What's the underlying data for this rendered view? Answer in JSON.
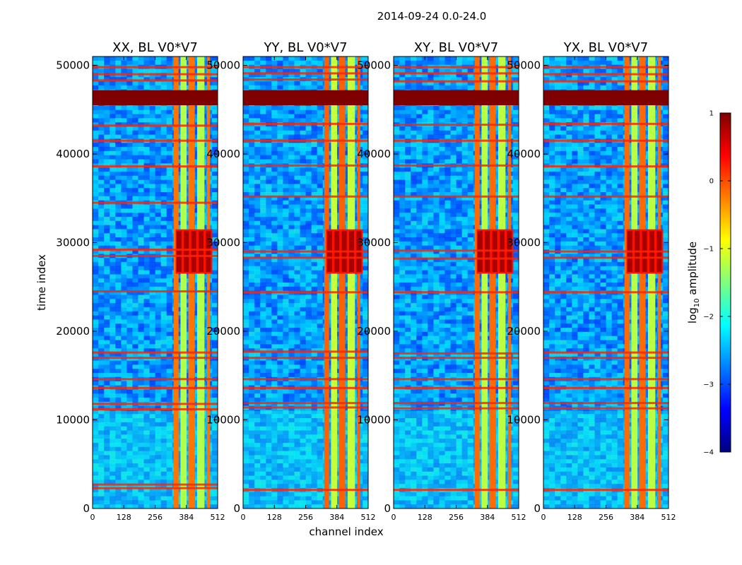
{
  "chart_data": {
    "type": "heatmap",
    "suptitle": "2014-09-24 0.0-24.0",
    "xlabel": "channel index",
    "ylabel": "time index",
    "xlim": [
      0,
      512
    ],
    "ylim": [
      0,
      51000
    ],
    "xticks": [
      0,
      128,
      256,
      384,
      512
    ],
    "yticks": [
      0,
      10000,
      20000,
      30000,
      40000,
      50000
    ],
    "panels": [
      {
        "id": "xx",
        "title": "XX, BL V0*V7",
        "band_value": 0.15,
        "rfi_lines": [
          2300,
          2700,
          11200,
          11800,
          13600,
          14600,
          17000,
          17600,
          24500,
          28500,
          29200,
          34500,
          38600,
          41500,
          43200,
          48300,
          49000,
          49800
        ]
      },
      {
        "id": "yy",
        "title": "YY, BL V0*V7",
        "band_value": 0.25,
        "rfi_lines": [
          2100,
          11400,
          11900,
          13600,
          14600,
          17000,
          17700,
          24400,
          28300,
          29000,
          35200,
          38700,
          41500,
          43400,
          48400,
          49100,
          49800
        ]
      },
      {
        "id": "xy",
        "title": "XY, BL V0*V7",
        "band_value": 0.2,
        "rfi_lines": [
          2100,
          11300,
          11900,
          13600,
          14600,
          17000,
          17500,
          24400,
          28200,
          29100,
          35200,
          38700,
          41500,
          43300,
          48200,
          49100,
          49800
        ]
      },
      {
        "id": "yx",
        "title": "YX, BL V0*V7",
        "band_value": 0.2,
        "rfi_lines": [
          2100,
          11300,
          11900,
          13600,
          14600,
          17000,
          17600,
          24400,
          28300,
          29000,
          35200,
          38600,
          41500,
          43400,
          48200,
          49000,
          49800
        ]
      }
    ],
    "saturated_band": {
      "t_start": 45500,
      "t_end": 47200,
      "value": 1
    },
    "strong_region": {
      "channel_start": 340,
      "channel_end": 490,
      "t_start": 26500,
      "t_end": 31500,
      "value": 0.8
    },
    "background_value": -2.6,
    "colorbar": {
      "label_prefix": "log",
      "label_sub": "10",
      "label_suffix": " amplitude",
      "min": -4,
      "max": 1,
      "ticks": [
        "-4",
        "-3",
        "-2",
        "-1",
        "0",
        "1"
      ],
      "colormap": [
        "#00007f",
        "#0000ff",
        "#007fff",
        "#00ffff",
        "#7fff7f",
        "#ffff00",
        "#ff7f00",
        "#ff0000",
        "#7f0000"
      ]
    }
  }
}
